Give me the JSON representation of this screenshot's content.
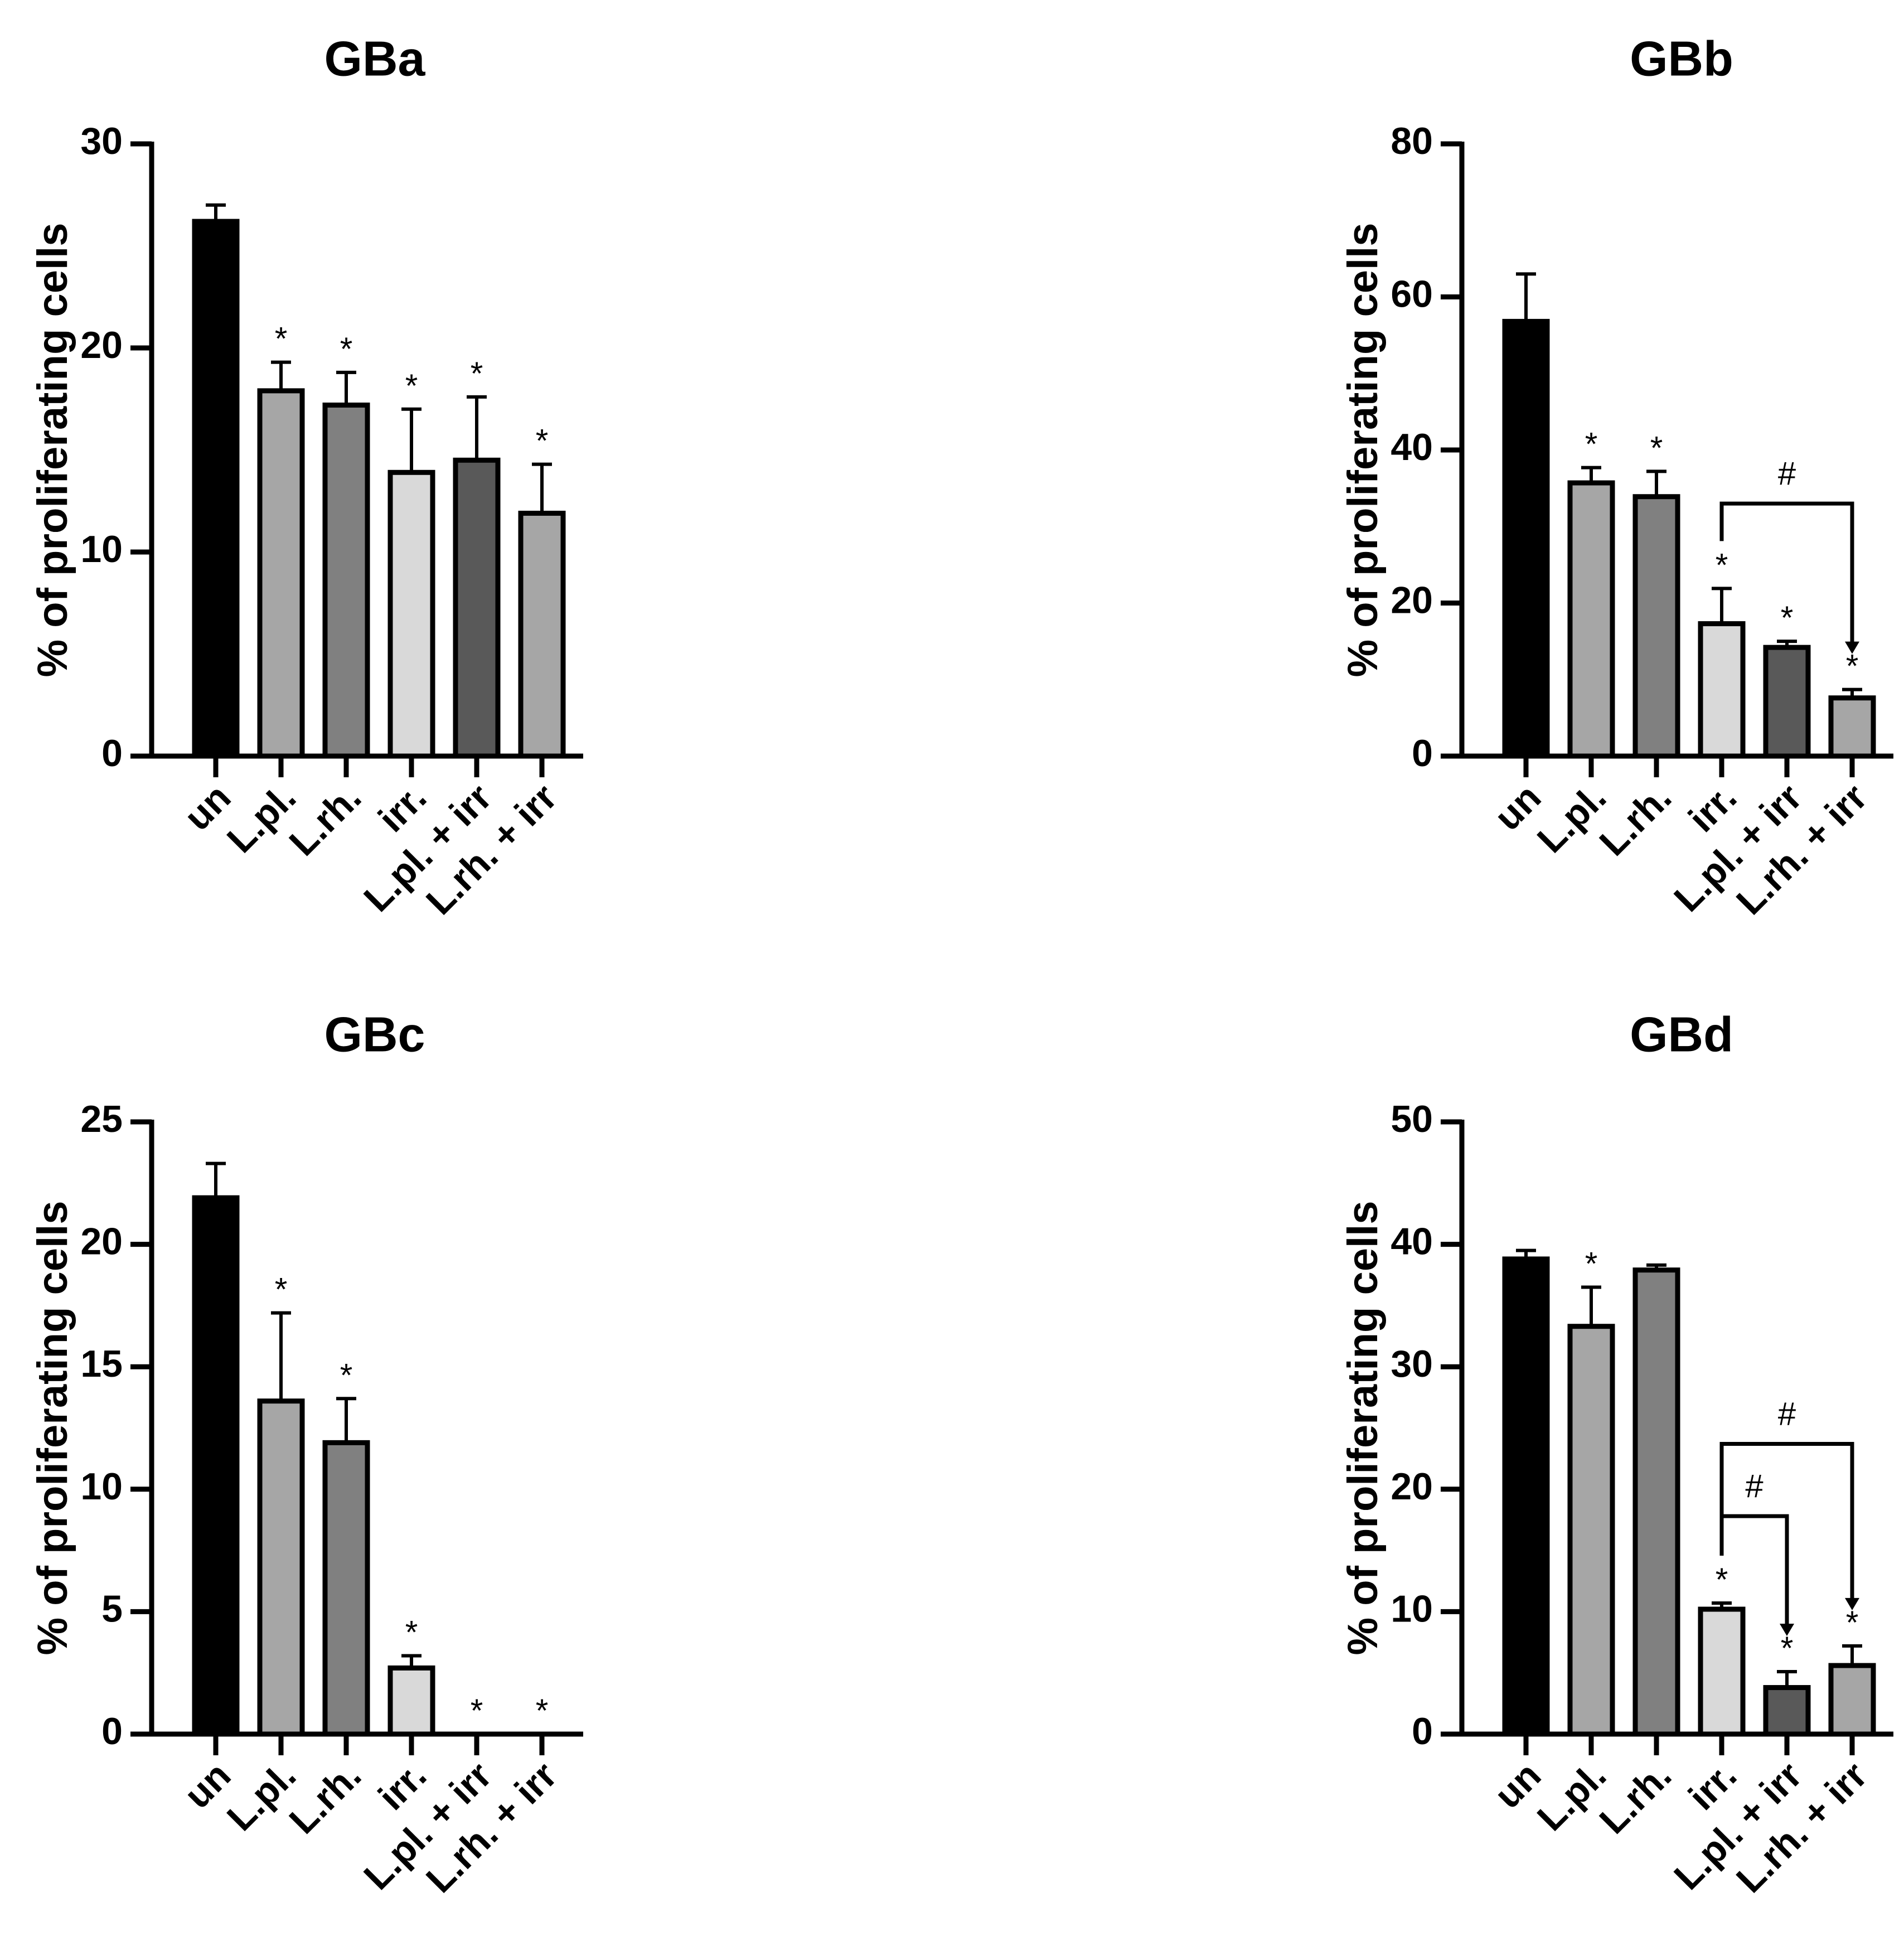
{
  "chart_data": [
    {
      "id": "GBa",
      "type": "bar",
      "title": "GBa",
      "ylabel": "% of proliferating cells",
      "xlabel": "",
      "ylim": [
        0,
        30
      ],
      "yticks": [
        0,
        10,
        20,
        30
      ],
      "categories": [
        "un",
        "L.pl.",
        "L.rh.",
        "irr.",
        "L.pl. + irr",
        "L.rh. + irr"
      ],
      "values": [
        26.2,
        17.9,
        17.2,
        13.9,
        14.5,
        11.9
      ],
      "errors": [
        0.8,
        1.4,
        1.6,
        3.1,
        3.1,
        2.4
      ],
      "fills": [
        "#000000",
        "#a6a6a6",
        "#808080",
        "#d9d9d9",
        "#595959",
        "#a6a6a6"
      ],
      "significance": [
        "",
        "*",
        "*",
        "*",
        "*",
        "*"
      ],
      "brackets": []
    },
    {
      "id": "GBb",
      "type": "bar",
      "title": "GBb",
      "ylabel": "% of proliferating cells",
      "xlabel": "",
      "ylim": [
        0,
        80
      ],
      "yticks": [
        0,
        20,
        40,
        60,
        80
      ],
      "categories": [
        "un",
        "L.pl.",
        "L.rh.",
        "irr.",
        "L.pl. + irr",
        "L.rh. + irr"
      ],
      "values": [
        56.8,
        35.7,
        33.9,
        17.3,
        14.2,
        7.6
      ],
      "errors": [
        6.2,
        2.0,
        3.3,
        4.6,
        0.8,
        1.1
      ],
      "fills": [
        "#000000",
        "#a6a6a6",
        "#808080",
        "#d9d9d9",
        "#595959",
        "#a6a6a6"
      ],
      "significance": [
        "",
        "*",
        "*",
        "*",
        "*",
        "*"
      ],
      "brackets": [
        {
          "from": 3,
          "to": 5,
          "level": 33,
          "label": "#"
        }
      ]
    },
    {
      "id": "GBc",
      "type": "bar",
      "title": "GBc",
      "ylabel": "% of proliferating cells",
      "xlabel": "",
      "ylim": [
        0,
        25
      ],
      "yticks": [
        0,
        5,
        10,
        15,
        20,
        25
      ],
      "categories": [
        "un",
        "L.pl.",
        "L.rh.",
        "irr.",
        "L.pl. + irr",
        "L.rh. + irr"
      ],
      "values": [
        21.9,
        13.6,
        11.9,
        2.7,
        0,
        0
      ],
      "errors": [
        1.4,
        3.6,
        1.8,
        0.5,
        0,
        0
      ],
      "fills": [
        "#000000",
        "#a6a6a6",
        "#808080",
        "#d9d9d9",
        "#595959",
        "#a6a6a6"
      ],
      "significance": [
        "",
        "*",
        "*",
        "*",
        "*",
        "*"
      ],
      "brackets": []
    },
    {
      "id": "GBd",
      "type": "bar",
      "title": "GBd",
      "ylabel": "% of proliferating cells",
      "xlabel": "",
      "ylim": [
        0,
        50
      ],
      "yticks": [
        0,
        10,
        20,
        30,
        40,
        50
      ],
      "categories": [
        "un",
        "L.pl.",
        "L.rh.",
        "irr.",
        "L.pl. + irr",
        "L.rh. + irr"
      ],
      "values": [
        38.8,
        33.3,
        37.9,
        10.2,
        3.8,
        5.6
      ],
      "errors": [
        0.7,
        3.2,
        0.4,
        0.5,
        1.3,
        1.6
      ],
      "fills": [
        "#000000",
        "#a6a6a6",
        "#808080",
        "#d9d9d9",
        "#595959",
        "#a6a6a6"
      ],
      "significance": [
        "",
        "*",
        "",
        "*",
        "*",
        "*"
      ],
      "brackets": [
        {
          "from": 3,
          "to": 5,
          "level": 23.7,
          "label": "#"
        },
        {
          "from": 3,
          "to": 4,
          "level": 17.8,
          "label": "#"
        }
      ]
    }
  ]
}
